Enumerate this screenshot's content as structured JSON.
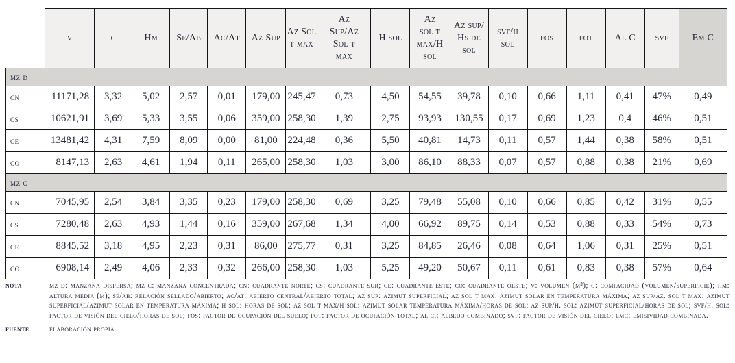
{
  "colors": {
    "header_bg": "#f1f0ee",
    "band_bg": "#d6d5d2",
    "border": "#15161a",
    "text": "#262a3a"
  },
  "table": {
    "headers": [
      "v",
      "c",
      "Hm",
      "Se/Ab",
      "Ac/At",
      "Az Sup",
      "Az Sol\nt max",
      "Az\nSup/Az\nSol t\nmax",
      "H sol",
      "Az\nsol t\nmax/H\nsol",
      "Az sup/\nHs de\nsol",
      "svf/h\nsol",
      "fos",
      "fot",
      "Al C",
      "svf",
      "Em C"
    ],
    "groups": [
      {
        "label": "mz d",
        "rows": [
          {
            "label": "cn",
            "values": [
              "11171,28",
              "3,32",
              "5,02",
              "2,57",
              "0,01",
              "179,00",
              "245,47",
              "0,73",
              "4,50",
              "54,55",
              "39,78",
              "0,10",
              "0,66",
              "1,11",
              "0,41",
              "47%",
              "0,49"
            ]
          },
          {
            "label": "cs",
            "values": [
              "10621,91",
              "3,69",
              "5,33",
              "3,55",
              "0,06",
              "359,00",
              "258,30",
              "1,39",
              "2,75",
              "93,93",
              "130,55",
              "0,17",
              "0,69",
              "1,23",
              "0,4",
              "46%",
              "0,51"
            ]
          },
          {
            "label": "ce",
            "values": [
              "13481,42",
              "4,31",
              "7,59",
              "8,09",
              "0,00",
              "81,00",
              "224,48",
              "0,36",
              "5,50",
              "40,81",
              "14,73",
              "0,11",
              "0,57",
              "1,44",
              "0,38",
              "58%",
              "0,51"
            ]
          },
          {
            "label": "co",
            "values": [
              "8147,13",
              "2,63",
              "4,61",
              "1,94",
              "0,11",
              "265,00",
              "258,30",
              "1,03",
              "3,00",
              "86,10",
              "88,33",
              "0,07",
              "0,57",
              "0,88",
              "0,38",
              "21%",
              "0,69"
            ]
          }
        ]
      },
      {
        "label": "mz c",
        "rows": [
          {
            "label": "cn",
            "values": [
              "7045,95",
              "2,54",
              "3,84",
              "3,35",
              "0,23",
              "179,00",
              "258,30",
              "0,69",
              "3,25",
              "79,48",
              "55,08",
              "0,10",
              "0,66",
              "0,85",
              "0,42",
              "31%",
              "0,55"
            ]
          },
          {
            "label": "cs",
            "values": [
              "7280,48",
              "2,63",
              "4,93",
              "1,44",
              "0,16",
              "359,00",
              "267,68",
              "1,34",
              "4,00",
              "66,92",
              "89,75",
              "0,14",
              "0,53",
              "0,88",
              "0,33",
              "54%",
              "0,73"
            ]
          },
          {
            "label": "ce",
            "values": [
              "8845,52",
              "3,18",
              "4,95",
              "2,23",
              "0,31",
              "86,00",
              "275,77",
              "0,31",
              "3,25",
              "84,85",
              "26,46",
              "0,08",
              "0,64",
              "1,06",
              "0,31",
              "25%",
              "0,51"
            ]
          },
          {
            "label": "co",
            "values": [
              "6908,14",
              "2,49",
              "4,06",
              "2,33",
              "0,32",
              "266,00",
              "258,30",
              "1,03",
              "5,25",
              "49,20",
              "50,67",
              "0,11",
              "0,61",
              "0,83",
              "0,38",
              "57%",
              "0,64"
            ]
          }
        ]
      }
    ]
  },
  "notes": {
    "note_label": "nota",
    "note_text": "mz d: manzana dispersa; mz c: manzana concentrada; cn: cuadrante norte; cs: cuadrante sur; ce: cuadrante este; co: cuadrante oeste; v: volumen (m³); c: compacidad (volumen/superficie); hm: altura media (m); se/ab: relación sellado/abierto; ac/at: abierto central/abierto total; az sup: azimut superficial; az sol t max: azimut solar en temperatura máxima; az sup/az. sol t max: azimut superficial/azimut solar en temperatura máxima; h sol: horas de sol; az sol t max/h sol: azimut solar temperatura máxima/horas de sol; az sup/h. sol: azimut superficial/horas de sol; svf/h. sol: factor de visión del cielo/horas de sol; fos: factor de ocupación del suelo; fot: factor de ocupación total; al c.: albedo combinado; svf: factor de visión del cielo; emc: emisividad combinada.",
    "source_label": "fuente",
    "source_text": "elaboración propia"
  }
}
